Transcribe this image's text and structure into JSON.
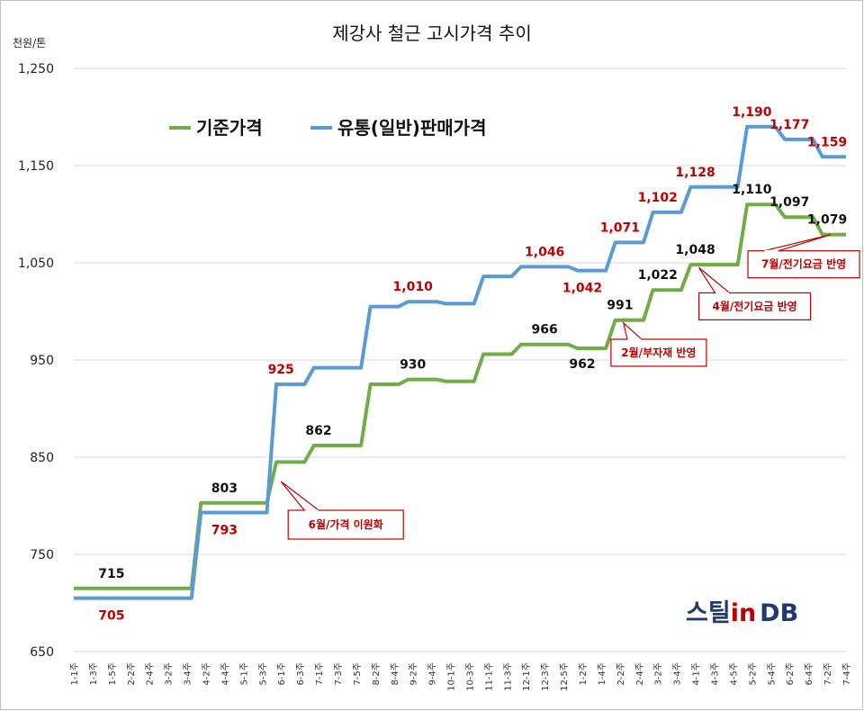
{
  "chart_data": {
    "type": "line",
    "title": "제강사 철근 고시가격 추이",
    "y_unit": "천원/톤",
    "ylim": [
      650,
      1250
    ],
    "yticks": [
      650,
      750,
      850,
      950,
      1050,
      1150,
      1250
    ],
    "ytick_labels": [
      "650",
      "750",
      "850",
      "950",
      "1,050",
      "1,150",
      "1,250"
    ],
    "grid": true,
    "legend_position": "top-left",
    "categories": [
      "1-1주",
      "1-3주",
      "1-5주",
      "2-2주",
      "2-4주",
      "3-2주",
      "3-4주",
      "4-2주",
      "4-4주",
      "5-1주",
      "5-3주",
      "6-1주",
      "6-3주",
      "7-1주",
      "7-3주",
      "7-5주",
      "8-2주",
      "8-4주",
      "9-2주",
      "9-4주",
      "10-1주",
      "10-3주",
      "11-1주",
      "11-3주",
      "12-1주",
      "12-3주",
      "12-5주",
      "1-2주",
      "1-4주",
      "2-2주",
      "2-4주",
      "3-2주",
      "3-4주",
      "4-1주",
      "4-3주",
      "4-5주",
      "5-2주",
      "5-4주",
      "6-2주",
      "6-4주",
      "7-2주",
      "7-4주"
    ],
    "series": [
      {
        "name": "기준가격",
        "color": "#70ad47",
        "values": [
          715,
          715,
          715,
          715,
          715,
          715,
          715,
          803,
          803,
          803,
          803,
          845,
          845,
          862,
          862,
          862,
          925,
          925,
          930,
          930,
          928,
          928,
          956,
          956,
          966,
          966,
          966,
          962,
          962,
          991,
          991,
          1022,
          1022,
          1048,
          1048,
          1048,
          1110,
          1110,
          1097,
          1097,
          1079,
          1079
        ]
      },
      {
        "name": "유통(일반)판매가격",
        "color": "#5b9bd5",
        "values": [
          705,
          705,
          705,
          705,
          705,
          705,
          705,
          793,
          793,
          793,
          793,
          925,
          925,
          942,
          942,
          942,
          1005,
          1005,
          1010,
          1010,
          1008,
          1008,
          1036,
          1036,
          1046,
          1046,
          1046,
          1042,
          1042,
          1071,
          1071,
          1102,
          1102,
          1128,
          1128,
          1128,
          1190,
          1190,
          1177,
          1177,
          1159,
          1159
        ]
      }
    ],
    "data_labels": {
      "base": [
        {
          "i": 2,
          "text": "715"
        },
        {
          "i": 8,
          "text": "803"
        },
        {
          "i": 13,
          "text": "862"
        },
        {
          "i": 18,
          "text": "930"
        },
        {
          "i": 25,
          "text": "966"
        },
        {
          "i": 27,
          "text": "962"
        },
        {
          "i": 29,
          "text": "991"
        },
        {
          "i": 31,
          "text": "1,022"
        },
        {
          "i": 33,
          "text": "1,048"
        },
        {
          "i": 36,
          "text": "1,110"
        },
        {
          "i": 38,
          "text": "1,097"
        },
        {
          "i": 40,
          "text": "1,079"
        }
      ],
      "dist": [
        {
          "i": 2,
          "text": "705"
        },
        {
          "i": 8,
          "text": "793"
        },
        {
          "i": 11,
          "text": "925"
        },
        {
          "i": 18,
          "text": "1,010"
        },
        {
          "i": 25,
          "text": "1,046"
        },
        {
          "i": 27,
          "text": "1,042"
        },
        {
          "i": 29,
          "text": "1,071"
        },
        {
          "i": 31,
          "text": "1,102"
        },
        {
          "i": 33,
          "text": "1,128"
        },
        {
          "i": 36,
          "text": "1,190"
        },
        {
          "i": 38,
          "text": "1,177"
        },
        {
          "i": 40,
          "text": "1,159"
        }
      ]
    },
    "annotations": [
      {
        "text": "6월/가격 이원화",
        "at_index": 11,
        "value": 825
      },
      {
        "text": "2월/부자재 반영",
        "at_index": 29,
        "value": 988
      },
      {
        "text": "4월/전기요금 반영",
        "at_index": 33,
        "value": 1045
      },
      {
        "text": "7월/전기요금 반영",
        "at_index": 40,
        "value": 1079
      }
    ]
  },
  "logo": {
    "text_ko": "스틸",
    "text_in": "in",
    "text_db": "DB",
    "color_dark": "#1f3a6e",
    "color_red": "#c00000"
  }
}
